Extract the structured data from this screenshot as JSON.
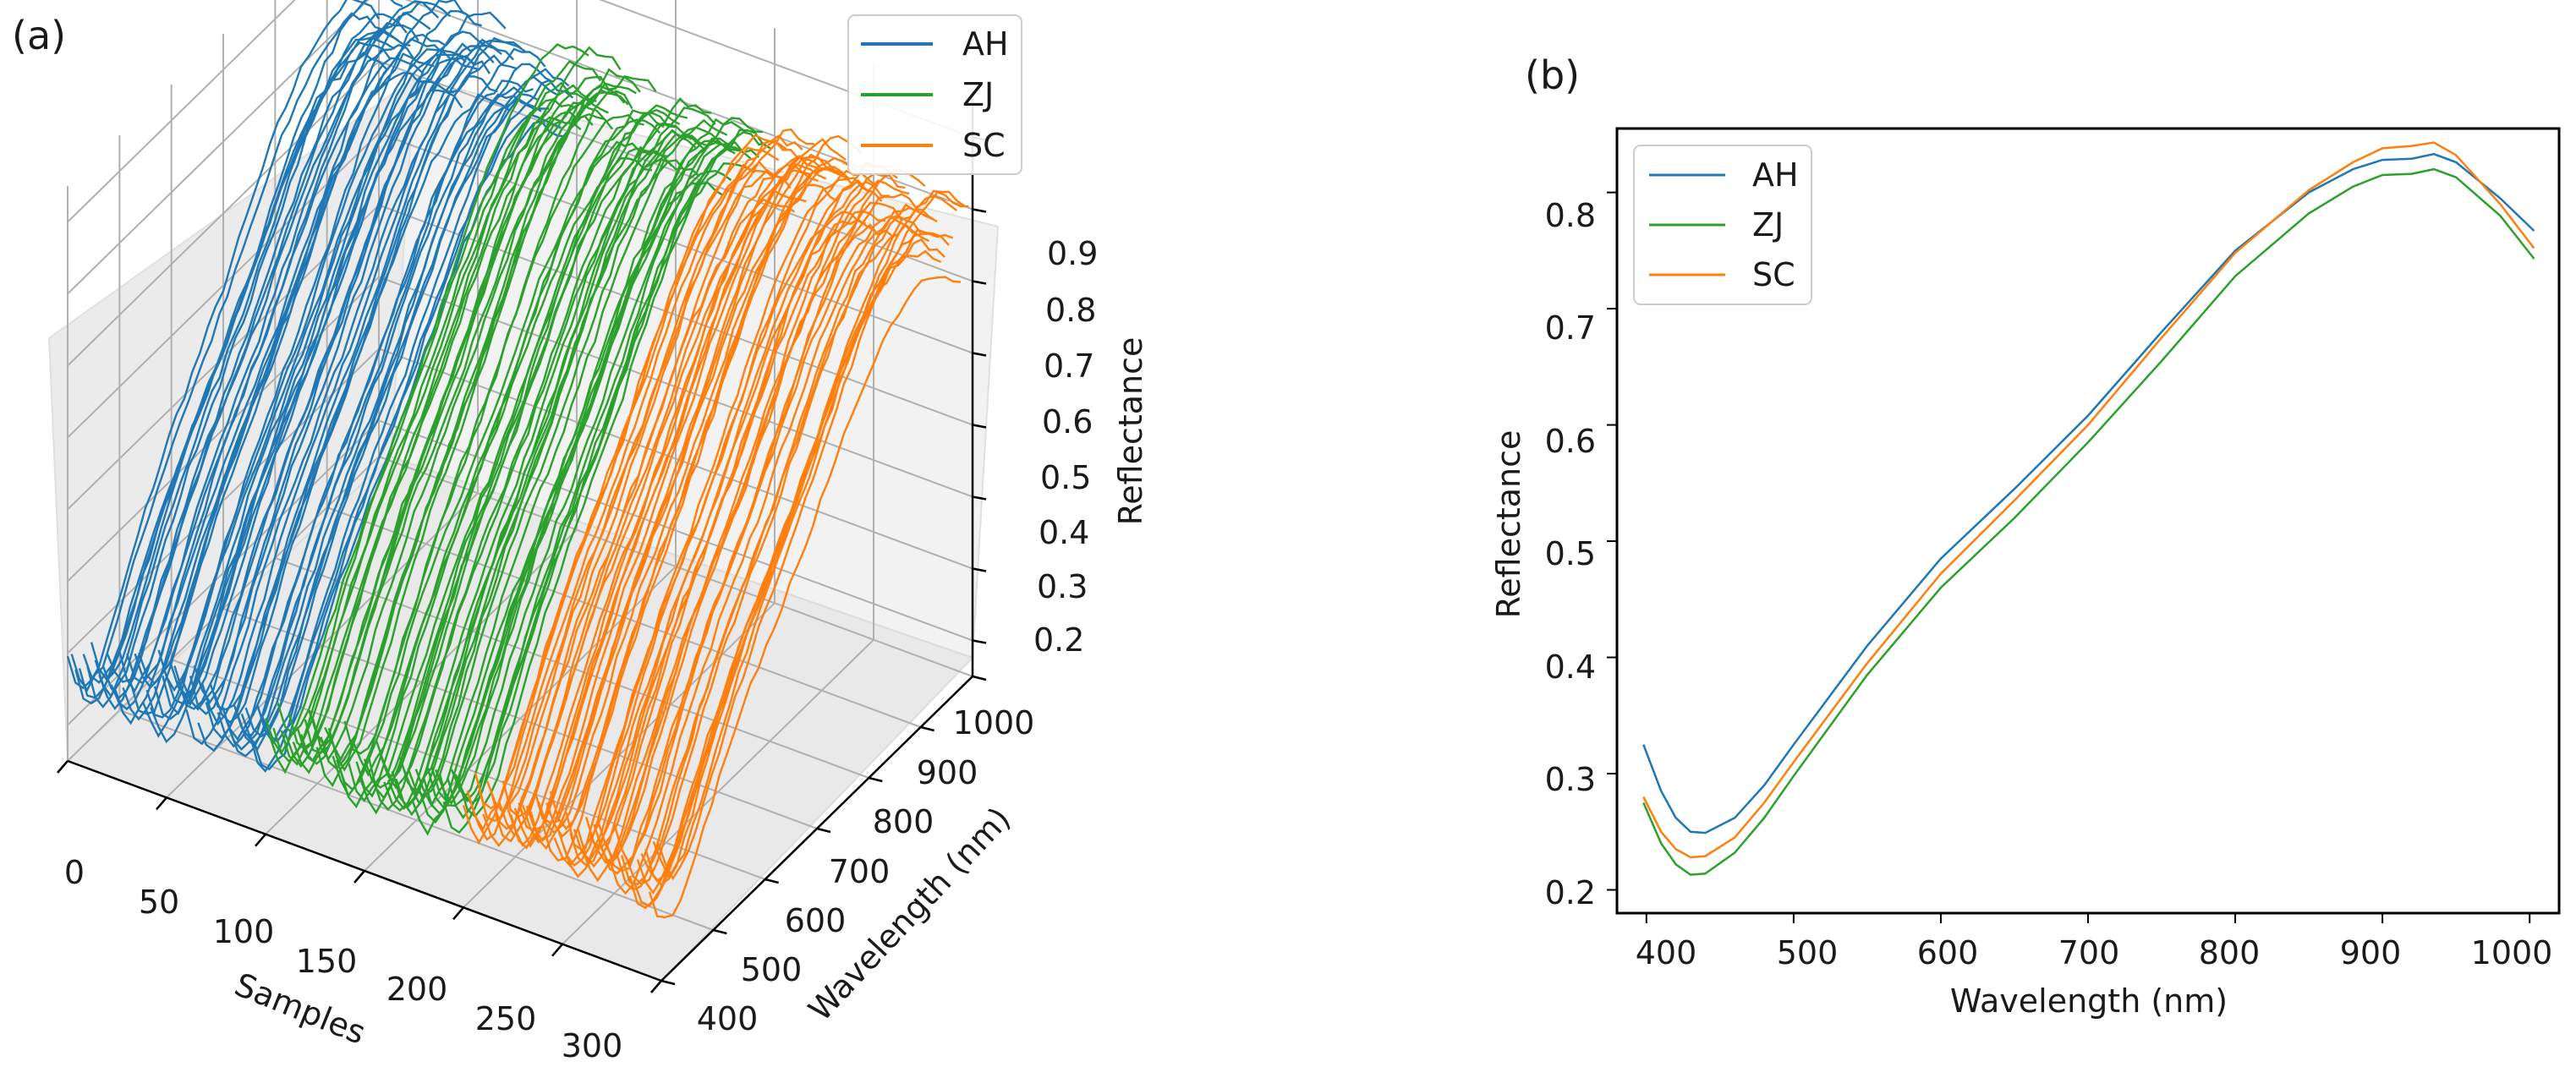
{
  "chart_data": [
    {
      "panel": "(a)",
      "type": "line",
      "projection": "3d",
      "xlabel": "Samples",
      "ylabel": "Wavelength (nm)",
      "zlabel": "Reflectance",
      "x_ticks": [
        "0",
        "50",
        "100",
        "150",
        "200",
        "250",
        "300"
      ],
      "y_ticks": [
        "400",
        "500",
        "600",
        "700",
        "800",
        "900",
        "1000"
      ],
      "z_ticks": [
        "0.2",
        "0.3",
        "0.4",
        "0.5",
        "0.6",
        "0.7",
        "0.8",
        "0.9"
      ],
      "xlim": [
        0,
        300
      ],
      "ylim": [
        400,
        1000
      ],
      "zlim": [
        0.15,
        0.95
      ],
      "grid": true,
      "legend": "top-right",
      "series": [
        {
          "name": "AH",
          "color": "#1f77b4",
          "sample_range": [
            0,
            99
          ]
        },
        {
          "name": "ZJ",
          "color": "#2ca02c",
          "sample_range": [
            100,
            199
          ]
        },
        {
          "name": "SC",
          "color": "#ff7f0e",
          "sample_range": [
            200,
            299
          ]
        }
      ],
      "note": "each sample is one reflectance spectrum (400–1000 nm) drawn as a line along the wavelength axis"
    },
    {
      "panel": "(b)",
      "type": "line",
      "xlabel": "Wavelength (nm)",
      "ylabel": "Reflectance",
      "xlim": [
        380,
        1020
      ],
      "ylim": [
        0.18,
        0.855
      ],
      "x_ticks": [
        "400",
        "500",
        "600",
        "700",
        "800",
        "900",
        "1000"
      ],
      "y_ticks": [
        "0.2",
        "0.3",
        "0.4",
        "0.5",
        "0.6",
        "0.7",
        "0.8"
      ],
      "legend": "top-left",
      "x": [
        398,
        410,
        420,
        430,
        440,
        460,
        480,
        500,
        550,
        600,
        650,
        700,
        750,
        800,
        850,
        880,
        900,
        920,
        935,
        950,
        980,
        1003
      ],
      "series": [
        {
          "name": "AH",
          "color": "#1f77b4",
          "values": [
            0.325,
            0.285,
            0.262,
            0.25,
            0.249,
            0.262,
            0.29,
            0.325,
            0.41,
            0.485,
            0.545,
            0.608,
            0.68,
            0.75,
            0.8,
            0.82,
            0.828,
            0.829,
            0.833,
            0.826,
            0.795,
            0.767
          ]
        },
        {
          "name": "ZJ",
          "color": "#2ca02c",
          "values": [
            0.275,
            0.24,
            0.222,
            0.213,
            0.214,
            0.232,
            0.262,
            0.298,
            0.385,
            0.46,
            0.52,
            0.585,
            0.655,
            0.728,
            0.782,
            0.805,
            0.815,
            0.816,
            0.82,
            0.813,
            0.78,
            0.743
          ]
        },
        {
          "name": "SC",
          "color": "#ff7f0e",
          "values": [
            0.28,
            0.25,
            0.235,
            0.228,
            0.229,
            0.245,
            0.275,
            0.31,
            0.395,
            0.472,
            0.535,
            0.6,
            0.675,
            0.748,
            0.802,
            0.826,
            0.838,
            0.84,
            0.843,
            0.832,
            0.79,
            0.752
          ]
        }
      ]
    }
  ]
}
